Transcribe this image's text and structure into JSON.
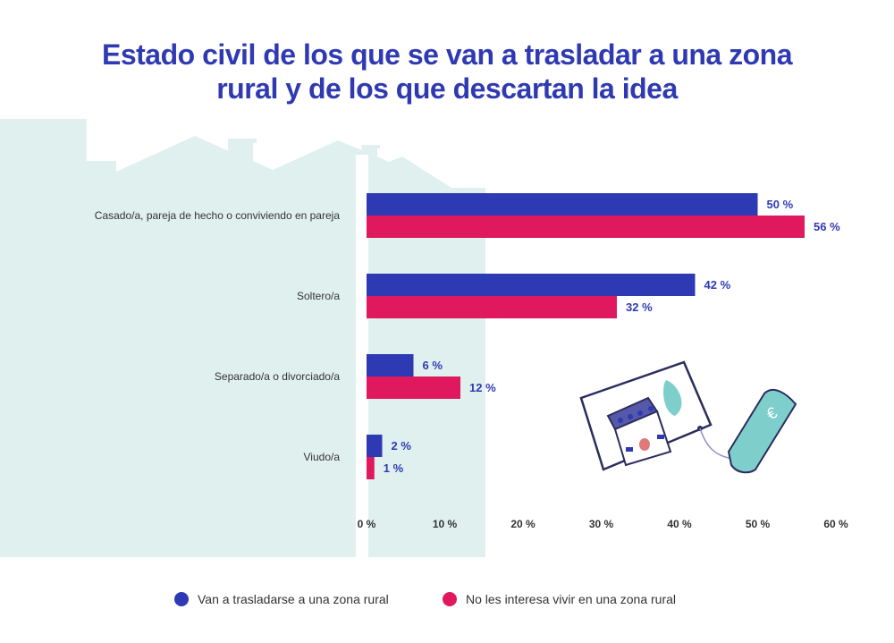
{
  "title_line1": "Estado civil de los que se van a trasladar a una zona",
  "title_line2": "rural y de los que descartan la idea",
  "colors": {
    "series1": "#2e3ab3",
    "series2": "#e0195e",
    "background_shape": "#dff0ef"
  },
  "chart_data": {
    "type": "bar",
    "orientation": "horizontal",
    "categories": [
      "Casado/a, pareja de hecho o conviviendo en pareja",
      "Soltero/a",
      "Separado/a o divorciado/a",
      "Viudo/a"
    ],
    "series": [
      {
        "name": "Van a trasladarse a una zona rural",
        "values": [
          50,
          42,
          6,
          2
        ],
        "labels": [
          "50 %",
          "42 %",
          "6 %",
          "2 %"
        ]
      },
      {
        "name": "No les interesa vivir en una zona rural",
        "values": [
          56,
          32,
          12,
          1
        ],
        "labels": [
          "56 %",
          "32 %",
          "12 %",
          "1 %"
        ]
      }
    ],
    "xlim": [
      0,
      60
    ],
    "xticks": [
      0,
      10,
      20,
      30,
      40,
      50,
      60
    ],
    "xtick_labels": [
      "0 %",
      "10 %",
      "20 %",
      "30 %",
      "40 %",
      "50 %",
      "60 %"
    ],
    "grid": false,
    "legend": "bottom"
  },
  "illustration": "house-for-sale-card-with-euro-price-tag"
}
